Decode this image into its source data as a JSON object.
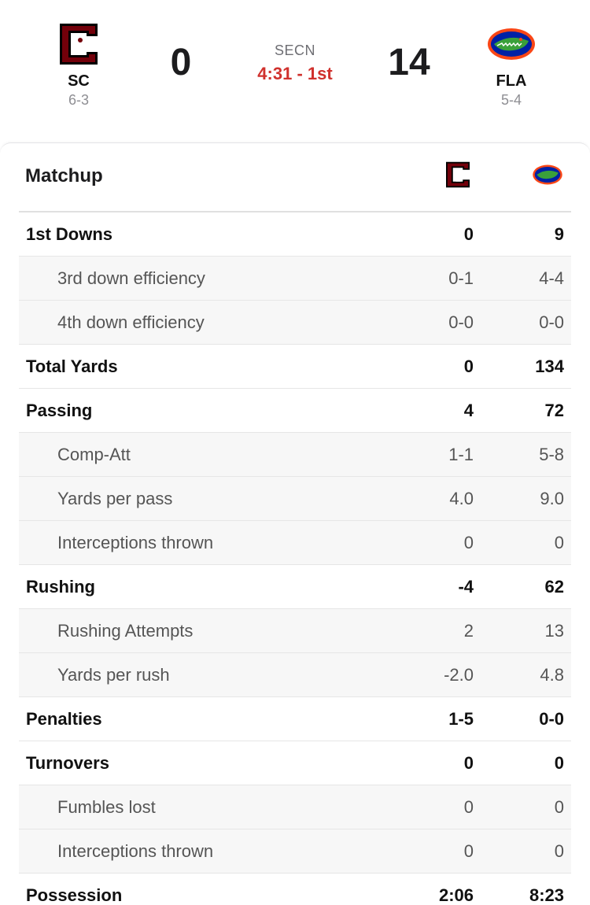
{
  "game": {
    "network": "SECN",
    "clock": "4:31 - 1st"
  },
  "home": {
    "abbr": "SC",
    "record": "6-3",
    "score": "0",
    "logo_icon": "south-carolina-gamecocks-logo",
    "colors": {
      "primary": "#73000a",
      "secondary": "#000000"
    }
  },
  "away": {
    "abbr": "FLA",
    "record": "5-4",
    "score": "14",
    "logo_icon": "florida-gators-logo",
    "colors": {
      "primary": "#0021a5",
      "secondary": "#fa4616",
      "accent": "#3aa03a"
    }
  },
  "matchup": {
    "title": "Matchup"
  },
  "stats": [
    {
      "label": "1st Downs",
      "home": "0",
      "away": "9",
      "level": "main"
    },
    {
      "label": "3rd down efficiency",
      "home": "0-1",
      "away": "4-4",
      "level": "sub"
    },
    {
      "label": "4th down efficiency",
      "home": "0-0",
      "away": "0-0",
      "level": "sub"
    },
    {
      "label": "Total Yards",
      "home": "0",
      "away": "134",
      "level": "main"
    },
    {
      "label": "Passing",
      "home": "4",
      "away": "72",
      "level": "main"
    },
    {
      "label": "Comp-Att",
      "home": "1-1",
      "away": "5-8",
      "level": "sub"
    },
    {
      "label": "Yards per pass",
      "home": "4.0",
      "away": "9.0",
      "level": "sub"
    },
    {
      "label": "Interceptions thrown",
      "home": "0",
      "away": "0",
      "level": "sub"
    },
    {
      "label": "Rushing",
      "home": "-4",
      "away": "62",
      "level": "main"
    },
    {
      "label": "Rushing Attempts",
      "home": "2",
      "away": "13",
      "level": "sub"
    },
    {
      "label": "Yards per rush",
      "home": "-2.0",
      "away": "4.8",
      "level": "sub"
    },
    {
      "label": "Penalties",
      "home": "1-5",
      "away": "0-0",
      "level": "main"
    },
    {
      "label": "Turnovers",
      "home": "0",
      "away": "0",
      "level": "main"
    },
    {
      "label": "Fumbles lost",
      "home": "0",
      "away": "0",
      "level": "sub"
    },
    {
      "label": "Interceptions thrown",
      "home": "0",
      "away": "0",
      "level": "sub"
    },
    {
      "label": "Possession",
      "home": "2:06",
      "away": "8:23",
      "level": "main"
    }
  ]
}
